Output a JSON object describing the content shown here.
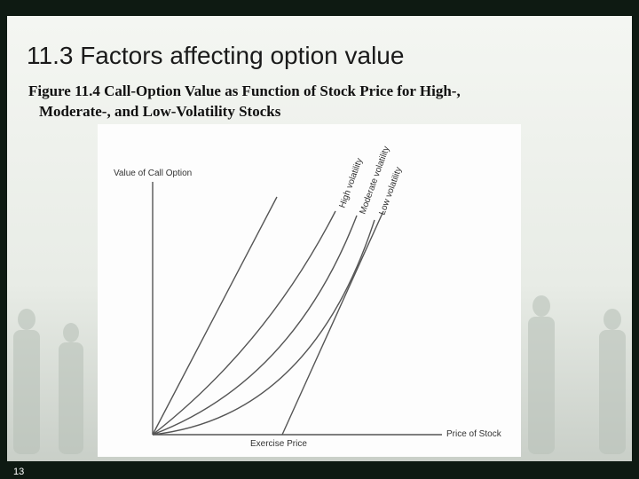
{
  "slide": {
    "title": "11.3  Factors affecting option value",
    "caption": [
      "Figure 11.4  Call-Option Value as Function of Stock Price for High-,",
      "Moderate-, and Low-Volatility Stocks"
    ],
    "number": "13"
  },
  "figure": {
    "y_axis_label": "Value of Call Option",
    "x_axis_label": "Price of Stock",
    "exercise_label": "Exercise Price",
    "curves": [
      "High volatility",
      "Moderate volatility",
      "Low volatility"
    ]
  }
}
